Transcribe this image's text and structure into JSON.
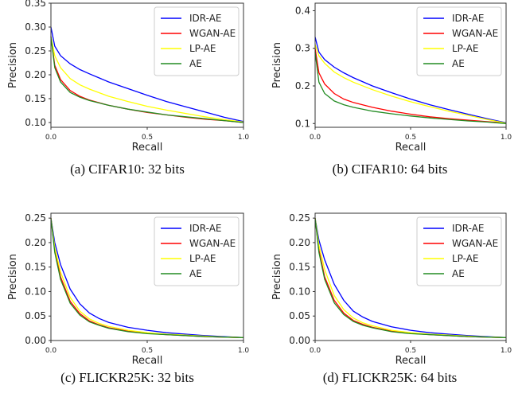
{
  "chart_data": [
    {
      "type": "line",
      "caption": "(a) CIFAR10: 32 bits",
      "xlabel": "Recall",
      "ylabel": "Precision",
      "xlim": [
        0,
        1
      ],
      "ylim": [
        0.09,
        0.35
      ],
      "xticks": [
        0.0,
        0.5,
        1.0
      ],
      "xtick_labels": [
        "0.0",
        "0.5",
        "1.0"
      ],
      "yticks": [
        0.1,
        0.15,
        0.2,
        0.25,
        0.3,
        0.35
      ],
      "ytick_labels": [
        "0.10",
        "0.15",
        "0.20",
        "0.25",
        "0.30",
        "0.35"
      ],
      "legend_position": "top-right",
      "x": [
        0,
        0.02,
        0.05,
        0.1,
        0.15,
        0.2,
        0.3,
        0.4,
        0.5,
        0.6,
        0.7,
        0.8,
        0.9,
        1.0
      ],
      "series": [
        {
          "name": "IDR-AE",
          "color": "#0000ff",
          "values": [
            0.3,
            0.26,
            0.24,
            0.223,
            0.211,
            0.202,
            0.185,
            0.171,
            0.157,
            0.144,
            0.133,
            0.122,
            0.111,
            0.102
          ]
        },
        {
          "name": "WGAN-AE",
          "color": "#ff0000",
          "values": [
            0.28,
            0.22,
            0.19,
            0.167,
            0.155,
            0.147,
            0.136,
            0.128,
            0.121,
            0.116,
            0.111,
            0.107,
            0.104,
            0.1
          ]
        },
        {
          "name": "LP-AE",
          "color": "#ffff00",
          "values": [
            0.28,
            0.24,
            0.215,
            0.192,
            0.179,
            0.17,
            0.155,
            0.144,
            0.134,
            0.126,
            0.119,
            0.112,
            0.106,
            0.101
          ]
        },
        {
          "name": "AE",
          "color": "#228b22",
          "values": [
            0.28,
            0.215,
            0.185,
            0.163,
            0.153,
            0.146,
            0.136,
            0.128,
            0.122,
            0.116,
            0.112,
            0.108,
            0.104,
            0.1
          ]
        }
      ]
    },
    {
      "type": "line",
      "caption": "(b) CIFAR10: 64 bits",
      "xlabel": "Recall",
      "ylabel": "Precision",
      "xlim": [
        0,
        1
      ],
      "ylim": [
        0.09,
        0.42
      ],
      "xticks": [
        0.0,
        0.5,
        1.0
      ],
      "xtick_labels": [
        "0.0",
        "0.5",
        "1.0"
      ],
      "yticks": [
        0.1,
        0.2,
        0.3,
        0.4
      ],
      "ytick_labels": [
        "0.1",
        "0.2",
        "0.3",
        "0.4"
      ],
      "legend_position": "top-right",
      "x": [
        0,
        0.02,
        0.05,
        0.1,
        0.15,
        0.2,
        0.3,
        0.4,
        0.5,
        0.6,
        0.7,
        0.8,
        0.9,
        1.0
      ],
      "series": [
        {
          "name": "IDR-AE",
          "color": "#0000ff",
          "values": [
            0.33,
            0.29,
            0.27,
            0.25,
            0.235,
            0.222,
            0.2,
            0.182,
            0.165,
            0.15,
            0.137,
            0.125,
            0.113,
            0.102
          ]
        },
        {
          "name": "WGAN-AE",
          "color": "#ff0000",
          "values": [
            0.3,
            0.235,
            0.205,
            0.18,
            0.165,
            0.156,
            0.143,
            0.133,
            0.125,
            0.118,
            0.113,
            0.109,
            0.105,
            0.101
          ]
        },
        {
          "name": "LP-AE",
          "color": "#ffff00",
          "values": [
            0.31,
            0.28,
            0.26,
            0.237,
            0.222,
            0.21,
            0.19,
            0.173,
            0.158,
            0.145,
            0.133,
            0.122,
            0.111,
            0.101
          ]
        },
        {
          "name": "AE",
          "color": "#228b22",
          "values": [
            0.29,
            0.21,
            0.18,
            0.16,
            0.15,
            0.143,
            0.133,
            0.126,
            0.12,
            0.115,
            0.111,
            0.107,
            0.104,
            0.1
          ]
        }
      ]
    },
    {
      "type": "line",
      "caption": "(c) FLICKR25K: 32 bits",
      "xlabel": "Recall",
      "ylabel": "Precision",
      "xlim": [
        0,
        1
      ],
      "ylim": [
        0.0,
        0.26
      ],
      "xticks": [
        0.0,
        0.5,
        1.0
      ],
      "xtick_labels": [
        "0.0",
        "0.5",
        "1.0"
      ],
      "yticks": [
        0.0,
        0.05,
        0.1,
        0.15,
        0.2,
        0.25
      ],
      "ytick_labels": [
        "0.00",
        "0.05",
        "0.10",
        "0.15",
        "0.20",
        "0.25"
      ],
      "legend_position": "top-right",
      "x": [
        0,
        0.02,
        0.05,
        0.1,
        0.15,
        0.2,
        0.25,
        0.3,
        0.4,
        0.5,
        0.6,
        0.7,
        0.8,
        0.9,
        1.0
      ],
      "series": [
        {
          "name": "IDR-AE",
          "color": "#0000ff",
          "values": [
            0.25,
            0.2,
            0.155,
            0.105,
            0.075,
            0.056,
            0.045,
            0.037,
            0.027,
            0.021,
            0.016,
            0.013,
            0.01,
            0.008,
            0.006
          ]
        },
        {
          "name": "WGAN-AE",
          "color": "#ff0000",
          "values": [
            0.25,
            0.185,
            0.13,
            0.08,
            0.055,
            0.04,
            0.032,
            0.026,
            0.019,
            0.015,
            0.012,
            0.01,
            0.008,
            0.007,
            0.006
          ]
        },
        {
          "name": "LP-AE",
          "color": "#ffff00",
          "values": [
            0.25,
            0.19,
            0.14,
            0.088,
            0.06,
            0.044,
            0.035,
            0.029,
            0.021,
            0.016,
            0.013,
            0.011,
            0.009,
            0.007,
            0.006
          ]
        },
        {
          "name": "AE",
          "color": "#228b22",
          "values": [
            0.25,
            0.18,
            0.125,
            0.076,
            0.052,
            0.038,
            0.031,
            0.025,
            0.018,
            0.014,
            0.012,
            0.01,
            0.008,
            0.007,
            0.006
          ]
        }
      ]
    },
    {
      "type": "line",
      "caption": "(d) FLICKR25K: 64 bits",
      "xlabel": "Recall",
      "ylabel": "Precision",
      "xlim": [
        0,
        1
      ],
      "ylim": [
        0.0,
        0.26
      ],
      "xticks": [
        0.0,
        0.5,
        1.0
      ],
      "xtick_labels": [
        "0.0",
        "0.5",
        "1.0"
      ],
      "yticks": [
        0.0,
        0.05,
        0.1,
        0.15,
        0.2,
        0.25
      ],
      "ytick_labels": [
        "0.00",
        "0.05",
        "0.10",
        "0.15",
        "0.20",
        "0.25"
      ],
      "legend_position": "top-right",
      "x": [
        0,
        0.02,
        0.05,
        0.1,
        0.15,
        0.2,
        0.25,
        0.3,
        0.4,
        0.5,
        0.6,
        0.7,
        0.8,
        0.9,
        1.0
      ],
      "series": [
        {
          "name": "IDR-AE",
          "color": "#0000ff",
          "values": [
            0.25,
            0.205,
            0.165,
            0.115,
            0.082,
            0.06,
            0.048,
            0.039,
            0.028,
            0.021,
            0.016,
            0.013,
            0.01,
            0.008,
            0.006
          ]
        },
        {
          "name": "WGAN-AE",
          "color": "#ff0000",
          "values": [
            0.25,
            0.185,
            0.13,
            0.082,
            0.056,
            0.041,
            0.033,
            0.027,
            0.019,
            0.015,
            0.012,
            0.01,
            0.008,
            0.007,
            0.006
          ]
        },
        {
          "name": "LP-AE",
          "color": "#ffff00",
          "values": [
            0.25,
            0.195,
            0.145,
            0.092,
            0.063,
            0.046,
            0.036,
            0.03,
            0.021,
            0.016,
            0.013,
            0.011,
            0.009,
            0.007,
            0.006
          ]
        },
        {
          "name": "AE",
          "color": "#228b22",
          "values": [
            0.25,
            0.18,
            0.125,
            0.077,
            0.053,
            0.039,
            0.031,
            0.026,
            0.018,
            0.014,
            0.012,
            0.01,
            0.008,
            0.007,
            0.006
          ]
        }
      ]
    }
  ]
}
